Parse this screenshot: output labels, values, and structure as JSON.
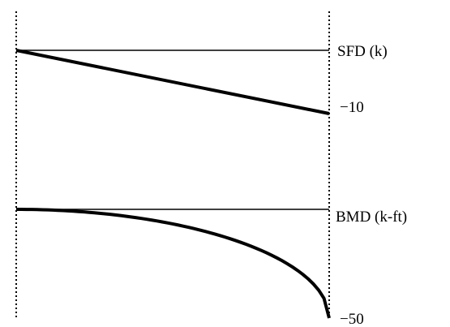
{
  "sfd": {
    "label": "SFD (k)",
    "end_value_label": "−10",
    "start_value": 0,
    "end_value": -10,
    "shape": "linear"
  },
  "bmd": {
    "label": "BMD (k-ft)",
    "end_value_label": "−50",
    "start_value": 0,
    "end_value": -50,
    "shape": "parabolic"
  },
  "colors": {
    "line": "#000000"
  }
}
